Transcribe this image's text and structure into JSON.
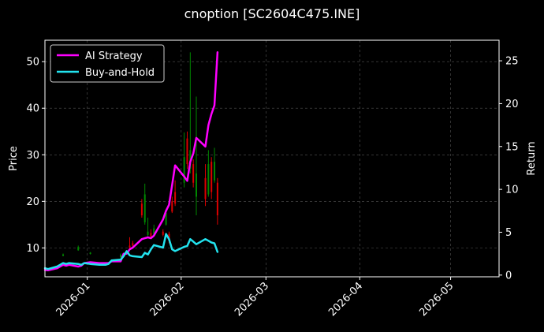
{
  "chart_data": {
    "type": "line",
    "title": "cnoption [SC2604C475.INE]",
    "ylabel": "Price",
    "y2label": "Return",
    "xlabel": "",
    "xlim": [
      "2025-12-18",
      "2026-05-17"
    ],
    "ylim": [
      3.8,
      54.6
    ],
    "y2lim": [
      -0.2,
      27.4
    ],
    "x_ticks": [
      "2026-01",
      "2026-02",
      "2026-03",
      "2026-04",
      "2026-05"
    ],
    "y_ticks": [
      10,
      20,
      30,
      40,
      50
    ],
    "y2_ticks": [
      0,
      5,
      10,
      15,
      20,
      25
    ],
    "grid": true,
    "legend_position": "top-left",
    "colors": {
      "background": "#000000",
      "ai_strategy": "#ff00ff",
      "buy_and_hold": "#22e3ee",
      "candle_up": "#008800",
      "candle_down": "#dd0000",
      "grid": "#555555"
    },
    "series": [
      {
        "name": "AI Strategy",
        "axis": "right",
        "x": [
          "2025-12-18",
          "2025-12-19",
          "2025-12-22",
          "2025-12-23",
          "2025-12-24",
          "2025-12-25",
          "2025-12-26",
          "2025-12-29",
          "2025-12-30",
          "2025-12-31",
          "2026-01-02",
          "2026-01-05",
          "2026-01-06",
          "2026-01-07",
          "2026-01-08",
          "2026-01-09",
          "2026-01-12",
          "2026-01-13",
          "2026-01-14",
          "2026-01-15",
          "2026-01-16",
          "2026-01-19",
          "2026-01-20",
          "2026-01-21",
          "2026-01-22",
          "2026-01-23",
          "2026-01-26",
          "2026-01-27",
          "2026-01-28",
          "2026-01-29",
          "2026-01-30",
          "2026-02-02",
          "2026-02-03",
          "2026-02-04",
          "2026-02-05",
          "2026-02-06",
          "2026-02-09",
          "2026-02-10",
          "2026-02-11",
          "2026-02-12",
          "2026-02-13"
        ],
        "values": [
          0.6,
          0.55,
          0.8,
          1.0,
          1.2,
          1.1,
          1.2,
          1.0,
          1.1,
          1.4,
          1.5,
          1.4,
          1.4,
          1.4,
          1.4,
          1.6,
          1.6,
          2.5,
          2.5,
          3.0,
          3.2,
          4.2,
          4.3,
          4.4,
          4.3,
          4.6,
          6.5,
          7.5,
          8.2,
          10.5,
          12.8,
          11.5,
          11.0,
          13.2,
          14.2,
          16.0,
          15.0,
          17.5,
          18.8,
          19.8,
          26.0
        ]
      },
      {
        "name": "Buy-and-Hold",
        "axis": "right",
        "x": [
          "2025-12-18",
          "2025-12-19",
          "2025-12-22",
          "2025-12-23",
          "2025-12-24",
          "2025-12-25",
          "2025-12-26",
          "2025-12-29",
          "2025-12-30",
          "2025-12-31",
          "2026-01-02",
          "2026-01-05",
          "2026-01-06",
          "2026-01-07",
          "2026-01-08",
          "2026-01-09",
          "2026-01-12",
          "2026-01-13",
          "2026-01-14",
          "2026-01-15",
          "2026-01-16",
          "2026-01-19",
          "2026-01-20",
          "2026-01-21",
          "2026-01-22",
          "2026-01-23",
          "2026-01-26",
          "2026-01-27",
          "2026-01-28",
          "2026-01-29",
          "2026-01-30",
          "2026-02-02",
          "2026-02-03",
          "2026-02-04",
          "2026-02-05",
          "2026-02-06",
          "2026-02-09",
          "2026-02-10",
          "2026-02-11",
          "2026-02-12",
          "2026-02-13"
        ],
        "values": [
          0.8,
          0.7,
          1.0,
          1.2,
          1.4,
          1.3,
          1.4,
          1.3,
          1.2,
          1.4,
          1.3,
          1.2,
          1.2,
          1.2,
          1.3,
          1.7,
          1.8,
          2.2,
          2.8,
          2.3,
          2.2,
          2.1,
          2.6,
          2.4,
          3.0,
          3.5,
          3.2,
          4.8,
          4.2,
          3.0,
          2.8,
          3.3,
          3.4,
          4.2,
          3.9,
          3.6,
          4.2,
          4.0,
          3.8,
          3.7,
          2.7
        ]
      }
    ],
    "candles": [
      {
        "date": "2025-12-24",
        "open": 8.3,
        "close": 8.6,
        "high": 8.8,
        "low": 8.2
      },
      {
        "date": "2025-12-29",
        "open": 9.5,
        "close": 10.2,
        "high": 10.5,
        "low": 9.4
      },
      {
        "date": "2026-01-02",
        "open": 8.7,
        "close": 9.0,
        "high": 9.1,
        "low": 8.6
      },
      {
        "date": "2026-01-09",
        "open": 7.4,
        "close": 7.2,
        "high": 7.5,
        "low": 7.0
      },
      {
        "date": "2026-01-12",
        "open": 8.0,
        "close": 8.5,
        "high": 8.8,
        "low": 7.9
      },
      {
        "date": "2026-01-15",
        "open": 10.5,
        "close": 10.0,
        "high": 12.3,
        "low": 9.8
      },
      {
        "date": "2026-01-16",
        "open": 11.0,
        "close": 10.5,
        "high": 11.5,
        "low": 10.2
      },
      {
        "date": "2026-01-19",
        "open": 19.5,
        "close": 17.0,
        "high": 20.5,
        "low": 16.5
      },
      {
        "date": "2026-01-20",
        "open": 15.5,
        "close": 21.5,
        "high": 23.8,
        "low": 15.0
      },
      {
        "date": "2026-01-21",
        "open": 12.8,
        "close": 13.5,
        "high": 16.5,
        "low": 12.5
      },
      {
        "date": "2026-01-22",
        "open": 13.2,
        "close": 12.5,
        "high": 14.0,
        "low": 12.3
      },
      {
        "date": "2026-01-23",
        "open": 13.0,
        "close": 14.2,
        "high": 15.0,
        "low": 12.8
      },
      {
        "date": "2026-01-26",
        "open": 13.5,
        "close": 12.8,
        "high": 14.0,
        "low": 12.5
      },
      {
        "date": "2026-01-27",
        "open": 15.0,
        "close": 17.5,
        "high": 18.0,
        "low": 14.8
      },
      {
        "date": "2026-01-28",
        "open": 13.0,
        "close": 11.5,
        "high": 13.5,
        "low": 11.0
      },
      {
        "date": "2026-01-29",
        "open": 20.0,
        "close": 17.8,
        "high": 21.0,
        "low": 17.5
      },
      {
        "date": "2026-01-30",
        "open": 22.0,
        "close": 19.5,
        "high": 24.5,
        "low": 19.0
      },
      {
        "date": "2026-02-02",
        "open": 24.0,
        "close": 29.5,
        "high": 34.8,
        "low": 23.0
      },
      {
        "date": "2026-02-03",
        "open": 33.5,
        "close": 28.0,
        "high": 35.0,
        "low": 27.0
      },
      {
        "date": "2026-02-04",
        "open": 27.0,
        "close": 31.0,
        "high": 52.0,
        "low": 26.0
      },
      {
        "date": "2026-02-05",
        "open": 28.0,
        "close": 24.0,
        "high": 29.0,
        "low": 23.0
      },
      {
        "date": "2026-02-06",
        "open": 21.0,
        "close": 26.0,
        "high": 42.5,
        "low": 17.0
      },
      {
        "date": "2026-02-09",
        "open": 25.0,
        "close": 20.5,
        "high": 28.0,
        "low": 19.0
      },
      {
        "date": "2026-02-10",
        "open": 21.5,
        "close": 28.0,
        "high": 31.0,
        "low": 21.0
      },
      {
        "date": "2026-02-11",
        "open": 28.5,
        "close": 22.0,
        "high": 29.5,
        "low": 20.5
      },
      {
        "date": "2026-02-12",
        "open": 24.5,
        "close": 28.5,
        "high": 31.5,
        "low": 24.0
      },
      {
        "date": "2026-02-13",
        "open": 24.0,
        "close": 17.0,
        "high": 25.0,
        "low": 15.0
      }
    ]
  }
}
